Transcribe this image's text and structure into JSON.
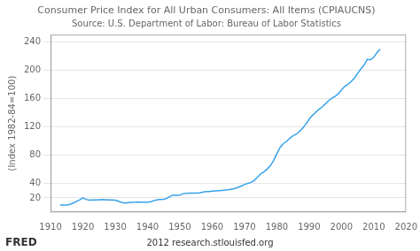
{
  "chart_data": {
    "type": "line",
    "title": "Consumer Price Index for All Urban Consumers: All Items (CPIAUCNS)",
    "subtitle": "Source: U.S. Department of Labor: Bureau of Labor Statistics",
    "y_label": "(Index 1982-84=100)",
    "annotations": [
      "FRED",
      "2012 research.stlouisfed.org"
    ],
    "x": [
      1913,
      1914,
      1915,
      1916,
      1917,
      1918,
      1919,
      1920,
      1921,
      1922,
      1923,
      1924,
      1925,
      1926,
      1927,
      1928,
      1929,
      1930,
      1931,
      1932,
      1933,
      1934,
      1935,
      1936,
      1937,
      1938,
      1939,
      1940,
      1941,
      1942,
      1943,
      1944,
      1945,
      1946,
      1947,
      1948,
      1949,
      1950,
      1951,
      1952,
      1953,
      1954,
      1955,
      1956,
      1957,
      1958,
      1959,
      1960,
      1961,
      1962,
      1963,
      1964,
      1965,
      1966,
      1967,
      1968,
      1969,
      1970,
      1971,
      1972,
      1973,
      1974,
      1975,
      1976,
      1977,
      1978,
      1979,
      1980,
      1981,
      1982,
      1983,
      1984,
      1985,
      1986,
      1987,
      1988,
      1989,
      1990,
      1991,
      1992,
      1993,
      1994,
      1995,
      1996,
      1997,
      1998,
      1999,
      2000,
      2001,
      2002,
      2003,
      2004,
      2005,
      2006,
      2007,
      2008,
      2009,
      2010,
      2011,
      2012
    ],
    "values": [
      9.9,
      10.0,
      10.1,
      10.9,
      12.8,
      15.1,
      17.3,
      20.0,
      17.9,
      16.8,
      17.1,
      17.1,
      17.5,
      17.7,
      17.4,
      17.1,
      17.1,
      16.7,
      15.2,
      13.6,
      12.9,
      13.4,
      13.7,
      13.9,
      14.4,
      14.1,
      13.9,
      14.0,
      14.7,
      16.3,
      17.3,
      17.6,
      18.0,
      19.5,
      22.3,
      24.1,
      23.8,
      24.1,
      26.0,
      26.5,
      26.7,
      26.9,
      26.8,
      27.2,
      28.1,
      28.9,
      29.1,
      29.6,
      29.9,
      30.2,
      30.6,
      31.0,
      31.5,
      32.4,
      33.4,
      34.8,
      36.7,
      38.8,
      40.5,
      41.8,
      44.4,
      49.3,
      53.8,
      56.9,
      60.6,
      65.2,
      72.6,
      82.4,
      90.9,
      96.5,
      99.6,
      103.9,
      107.6,
      109.6,
      113.6,
      118.3,
      124.0,
      130.7,
      136.2,
      140.3,
      144.5,
      148.2,
      152.4,
      156.9,
      160.5,
      163.0,
      166.6,
      172.2,
      177.1,
      179.9,
      184.0,
      188.9,
      195.3,
      201.6,
      207.3,
      215.3,
      214.5,
      218.1,
      224.9,
      229.6
    ],
    "xlim": [
      1910,
      2020
    ],
    "xticks": [
      1910,
      1920,
      1930,
      1940,
      1950,
      1960,
      1970,
      1980,
      1990,
      2000,
      2010,
      2020
    ],
    "ylim": [
      0,
      250
    ],
    "yticks": [
      20,
      40,
      80,
      120,
      160,
      200,
      240
    ],
    "grid": "y"
  }
}
